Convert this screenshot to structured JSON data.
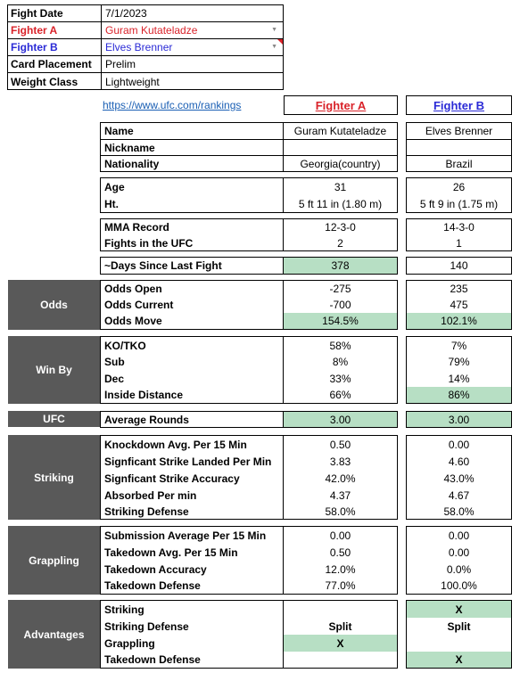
{
  "header": {
    "rows": [
      {
        "label": "Fight Date",
        "value": "7/1/2023"
      },
      {
        "label": "Fighter A",
        "value": "Guram Kutateladze"
      },
      {
        "label": "Fighter B",
        "value": "Elves Brenner"
      },
      {
        "label": "Card Placement",
        "value": "Prelim"
      },
      {
        "label": "Weight Class",
        "value": "Lightweight"
      }
    ]
  },
  "link": "https://www.ufc.com/rankings",
  "fighter_a_heading": "Fighter A",
  "fighter_b_heading": "Fighter B",
  "profile": {
    "name_label": "Name",
    "name_a": "Guram Kutateladze",
    "name_b": "Elves Brenner",
    "nickname_label": "Nickname",
    "nickname_a": "",
    "nickname_b": "",
    "nationality_label": "Nationality",
    "nationality_a": "Georgia(country)",
    "nationality_b": "Brazil"
  },
  "physical": {
    "age_label": "Age",
    "age_a": "31",
    "age_b": "26",
    "ht_label": "Ht.",
    "ht_a": "5 ft 11 in (1.80 m)",
    "ht_b": "5 ft 9 in (1.75 m)"
  },
  "record": {
    "mma_label": "MMA Record",
    "mma_a": "12-3-0",
    "mma_b": "14-3-0",
    "ufc_label": "Fights in the UFC",
    "ufc_a": "2",
    "ufc_b": "1"
  },
  "days": {
    "label": "~Days Since Last Fight",
    "a": "378",
    "b": "140"
  },
  "odds": {
    "section": "Odds",
    "open_label": "Odds Open",
    "open_a": "-275",
    "open_b": "235",
    "current_label": "Odds Current",
    "current_a": "-700",
    "current_b": "475",
    "move_label": "Odds Move",
    "move_a": "154.5%",
    "move_b": "102.1%"
  },
  "winby": {
    "section": "Win By",
    "ko_label": "KO/TKO",
    "ko_a": "58%",
    "ko_b": "7%",
    "sub_label": "Sub",
    "sub_a": "8%",
    "sub_b": "79%",
    "dec_label": "Dec",
    "dec_a": "33%",
    "dec_b": "14%",
    "inside_label": "Inside Distance",
    "inside_a": "66%",
    "inside_b": "86%"
  },
  "ufc": {
    "section": "UFC",
    "label": "Average Rounds",
    "a": "3.00",
    "b": "3.00"
  },
  "striking": {
    "section": "Striking",
    "kd_label": "Knockdown Avg. Per 15 Min",
    "kd_a": "0.50",
    "kd_b": "0.00",
    "slpm_label": "Signficant Strike Landed Per Min",
    "slpm_a": "3.83",
    "slpm_b": "4.60",
    "acc_label": "Signficant Strike Accuracy",
    "acc_a": "42.0%",
    "acc_b": "43.0%",
    "abs_label": "Absorbed Per min",
    "abs_a": "4.37",
    "abs_b": "4.67",
    "def_label": "Striking Defense",
    "def_a": "58.0%",
    "def_b": "58.0%"
  },
  "grappling": {
    "section": "Grappling",
    "sub_label": "Submission Average  Per 15 Min",
    "sub_a": "0.00",
    "sub_b": "0.00",
    "td_label": "Takedown Avg. Per 15 Min",
    "td_a": "0.50",
    "td_b": "0.00",
    "tdacc_label": "Takedown Accuracy",
    "tdacc_a": "12.0%",
    "tdacc_b": "0.0%",
    "tddef_label": "Takedown Defense",
    "tddef_a": "77.0%",
    "tddef_b": "100.0%"
  },
  "advantages": {
    "section": "Advantages",
    "striking_label": "Striking",
    "striking_a": "",
    "striking_b": "X",
    "sdef_label": "Striking Defense",
    "sdef_a": "Split",
    "sdef_b": "Split",
    "grappling_label": "Grappling",
    "grappling_a": "X",
    "grappling_b": "",
    "tddef_label": "Takedown Defense",
    "tddef_a": "",
    "tddef_b": "X"
  }
}
